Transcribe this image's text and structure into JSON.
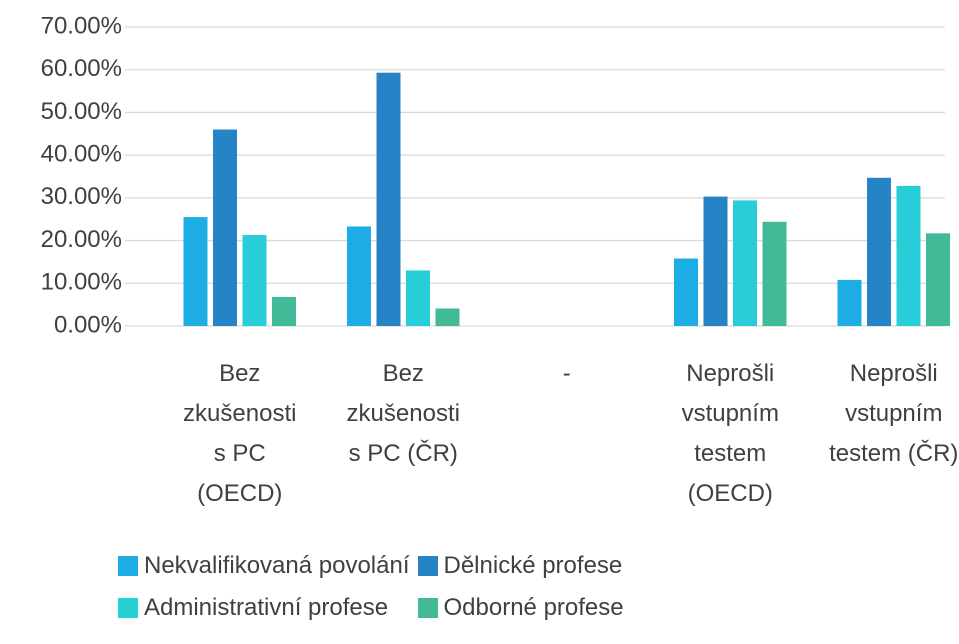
{
  "chart_data": {
    "type": "bar",
    "categories": [
      "Bez zkušenosti s PC (OECD)",
      "Bez zkušenosti s PC (ČR)",
      "-",
      "Neprošli vstupním testem (OECD)",
      "Neprošli vstupním testem (ČR)"
    ],
    "series": [
      {
        "name": "Nekvalifikovaná povolání",
        "color": "#1cade4",
        "values": [
          25.5,
          23.3,
          null,
          15.8,
          10.8
        ]
      },
      {
        "name": "Dělnické profese",
        "color": "#2683c6",
        "values": [
          46.0,
          59.3,
          null,
          30.3,
          34.7
        ]
      },
      {
        "name": "Administrativní profese",
        "color": "#27ced7",
        "values": [
          21.3,
          13.0,
          null,
          29.4,
          32.8
        ]
      },
      {
        "name": "Odborné profese",
        "color": "#42ba97",
        "values": [
          6.8,
          4.1,
          null,
          24.4,
          21.7
        ]
      }
    ],
    "ylim": [
      0,
      70
    ],
    "yticks": [
      {
        "value": 0,
        "label": "0.00%"
      },
      {
        "value": 10,
        "label": "10.00%"
      },
      {
        "value": 20,
        "label": "20.00%"
      },
      {
        "value": 30,
        "label": "30.00%"
      },
      {
        "value": 40,
        "label": "40.00%"
      },
      {
        "value": 50,
        "label": "50.00%"
      },
      {
        "value": 60,
        "label": "60.00%"
      },
      {
        "value": 70,
        "label": "70.00%"
      }
    ],
    "grid": true
  }
}
